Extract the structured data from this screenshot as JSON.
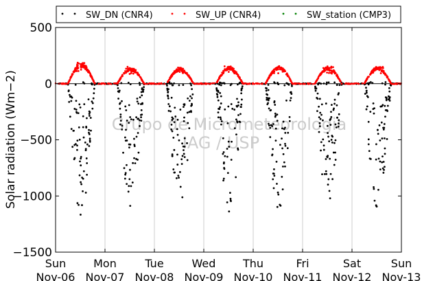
{
  "chart_data": {
    "type": "scatter",
    "title": "",
    "ylabel": "Solar radiation (Wm−2)",
    "xlabel": "",
    "ylim": [
      -1500,
      500
    ],
    "y_ticks": [
      500,
      0,
      -500,
      -1000,
      -1500
    ],
    "y_tick_labels": [
      "500",
      "0",
      "−500",
      "−1000",
      "−1500"
    ],
    "xlim": [
      "2013-11-06",
      "2013-11-13"
    ],
    "x_tick_labels": [
      {
        "day": "Sun",
        "date": "Nov-06"
      },
      {
        "day": "Mon",
        "date": "Nov-07"
      },
      {
        "day": "Tue",
        "date": "Nov-08"
      },
      {
        "day": "Wed",
        "date": "Nov-09"
      },
      {
        "day": "Thu",
        "date": "Nov-10"
      },
      {
        "day": "Fri",
        "date": "Nov-11"
      },
      {
        "day": "Sat",
        "date": "Nov-12"
      },
      {
        "day": "Sun",
        "date": "Nov-13"
      }
    ],
    "grid": "vertical",
    "zero_line": true,
    "legend_placement": "top",
    "watermark": [
      "Grupo de Micrometeorologia",
      "IAG / USP"
    ],
    "series": [
      {
        "name": "SW_DN (CNR4)",
        "color": "#000000",
        "marker": "dot",
        "daily_peaks": [
          -1200,
          -1100,
          -1080,
          -1150,
          -1150,
          -1100,
          -1150
        ],
        "sunrise_hour": 6,
        "sunset_hour": 19
      },
      {
        "name": "SW_UP (CNR4)",
        "color": "#ff0000",
        "marker": "dot",
        "daily_peaks": [
          190,
          150,
          150,
          160,
          165,
          160,
          160
        ],
        "sunrise_hour": 6,
        "sunset_hour": 19
      },
      {
        "name": "SW_station (CMP3)",
        "color": "#008000",
        "marker": "dot",
        "daily_peaks": []
      }
    ]
  }
}
